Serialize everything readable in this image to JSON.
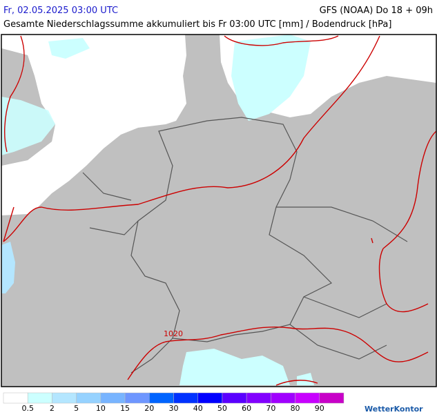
{
  "header": {
    "date": "Fr, 02.05.2025 03:00 UTC",
    "model": "GFS (NOAA) Do 18 + 09h",
    "subtitle": "Gesamte Niederschlagssumme akkumuliert bis Fr 03:00 UTC [mm] / Bodendruck [hPa]"
  },
  "map": {
    "isobar_label": "1020"
  },
  "legend": {
    "colors": [
      "#ffffff",
      "#ccffff",
      "#b4e6ff",
      "#96d2ff",
      "#78b4ff",
      "#6e96ff",
      "#0064ff",
      "#0032ff",
      "#0000ff",
      "#5a00ff",
      "#8200ff",
      "#a000ff",
      "#c800ff",
      "#c800c8"
    ],
    "labels": [
      0.5,
      2,
      5,
      10,
      15,
      20,
      30,
      40,
      50,
      60,
      70,
      80,
      90
    ]
  },
  "brand": "WetterKontor"
}
